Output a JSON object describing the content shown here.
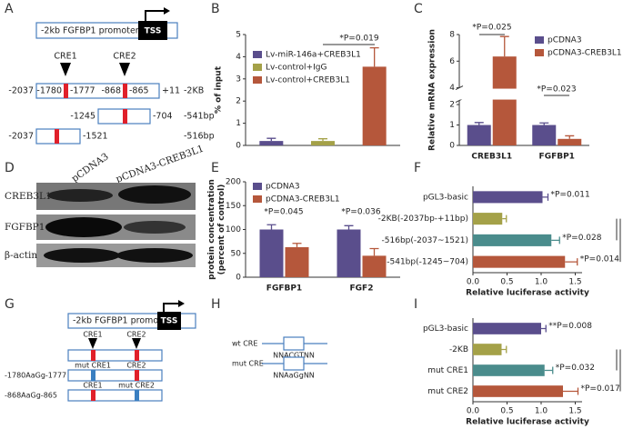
{
  "panel_labels": [
    "A",
    "B",
    "C",
    "D",
    "E",
    "F",
    "G",
    "H",
    "I"
  ],
  "diagram_a": {
    "promoter": "-2kb FGFBP1 promoter",
    "tss": "TSS",
    "cre_labels": [
      "CRE1",
      "CRE2"
    ],
    "rows": [
      [
        "-2037",
        "-1780",
        "-1777",
        "-868",
        "-865",
        "+11",
        "-2KB"
      ],
      [
        "-1245",
        "-704",
        "-541bp"
      ],
      [
        "-2037",
        "-1521",
        "-516bp"
      ]
    ]
  },
  "blot_d": {
    "columns": [
      "pCDNA3",
      "pCDNA3-CREB3L1"
    ],
    "rows": [
      "CREB3L1",
      "FGFBP1",
      "β-actin"
    ]
  },
  "diagram_g": {
    "promoter": "-2kb FGFBP1 promoter",
    "tss": "TSS",
    "cre_labels": [
      "CRE1",
      "CRE2"
    ],
    "row_labels": [
      [
        "mut CRE1",
        "CRE2"
      ],
      [
        "CRE1",
        "mut CRE2"
      ]
    ],
    "sequences": [
      "-1780AaGg-1777",
      "-868AaGg-865"
    ]
  },
  "diagram_h": {
    "labels": [
      "wt CRE",
      "mut CRE"
    ],
    "sequences": [
      "NNACGTNN",
      "NNAaGgNN"
    ]
  },
  "chart_data": [
    {
      "type": "bar",
      "y_label": "% of input",
      "categories": [
        null,
        null,
        null
      ],
      "series": [
        {
          "name": "Lv-miR-146a+CREB3L1",
          "color": "#5a4e8c",
          "values": [
            0.2,
            null,
            null
          ],
          "errors": [
            0.12,
            null,
            null
          ]
        },
        {
          "name": "Lv-control+IgG",
          "color": "#a4a148",
          "values": [
            null,
            0.2,
            null
          ],
          "errors": [
            null,
            0.1,
            null
          ]
        },
        {
          "name": "Lv-control+CREB3L1",
          "color": "#b5573b",
          "values": [
            null,
            null,
            3.55
          ],
          "errors": [
            null,
            null,
            0.85
          ]
        }
      ],
      "ylim": [
        0,
        5
      ],
      "yticks": [
        0,
        1,
        2,
        3,
        4,
        5
      ],
      "legend": "upper left",
      "annotations": [
        "*P=0.019"
      ]
    },
    {
      "type": "bar",
      "y_label": "Relative mRNA expression",
      "categories": [
        "CREB3L1",
        "FGFBP1"
      ],
      "series": [
        {
          "name": "pCDNA3",
          "color": "#5a4e8c",
          "values": [
            1.0,
            1.0
          ],
          "errors": [
            0.12,
            0.1
          ]
        },
        {
          "name": "pCDNA3-CREB3L1",
          "color": "#b5573b",
          "values": [
            6.35,
            0.32
          ],
          "errors": [
            1.5,
            0.15
          ]
        }
      ],
      "ylim": [
        0,
        8
      ],
      "ybreak": [
        2.2,
        4
      ],
      "yticks": [
        0,
        1,
        2,
        4,
        6,
        8
      ],
      "legend": "upper right",
      "annotations": [
        "*P=0.025",
        "*P=0.023"
      ]
    },
    {
      "type": "bar",
      "y_label": [
        "protein concentration",
        "(percent of control)"
      ],
      "categories": [
        "FGFBP1",
        "FGF2"
      ],
      "series": [
        {
          "name": "pCDNA3",
          "color": "#5a4e8c",
          "values": [
            100,
            100
          ],
          "errors": [
            10,
            8
          ]
        },
        {
          "name": "pCDNA3-CREB3L1",
          "color": "#b5573b",
          "values": [
            63,
            45
          ],
          "errors": [
            8,
            15
          ]
        }
      ],
      "ylim": [
        0,
        200
      ],
      "yticks": [
        0,
        50,
        100,
        150,
        200
      ],
      "legend": "upper left",
      "annotations": [
        "*P=0.045",
        "*P=0.036"
      ]
    },
    {
      "type": "hbar",
      "x_label": "Relative luciferase activity",
      "categories": [
        "pGL3-basic",
        "-2KB(-2037bp-+11bp)",
        "-516bp(-2037~1521)",
        "-541bp(-1245~704)"
      ],
      "values": [
        1.02,
        0.43,
        1.15,
        1.35
      ],
      "errors": [
        0.08,
        0.06,
        0.12,
        0.18
      ],
      "colors": [
        "#5a4e8c",
        "#a4a148",
        "#4a8c8c",
        "#b5573b"
      ],
      "xlim": [
        0,
        1.6
      ],
      "xticks": [
        {
          "value": 0,
          "label": "0.0"
        },
        0.5,
        {
          "value": 1,
          "label": "1.0"
        },
        1.5
      ],
      "annotations": [
        "*P=0.011",
        "*P=0.028",
        "*P=0.014"
      ]
    },
    {
      "type": "hbar",
      "x_label": "Relative luciferase activity",
      "categories": [
        "pGL3-basic",
        "-2KB",
        "mut CRE1",
        "mut CRE2"
      ],
      "values": [
        1.0,
        0.42,
        1.05,
        1.32
      ],
      "errors": [
        0.07,
        0.07,
        0.12,
        0.22
      ],
      "colors": [
        "#5a4e8c",
        "#a4a148",
        "#4a8c8c",
        "#b5573b"
      ],
      "xlim": [
        0,
        1.6
      ],
      "xticks": [
        {
          "value": 0,
          "label": "0.0"
        },
        0.5,
        {
          "value": 1,
          "label": "1.0"
        },
        1.5
      ],
      "annotations": [
        "**P=0.008",
        "*P=0.032",
        "*P=0.017"
      ]
    }
  ]
}
